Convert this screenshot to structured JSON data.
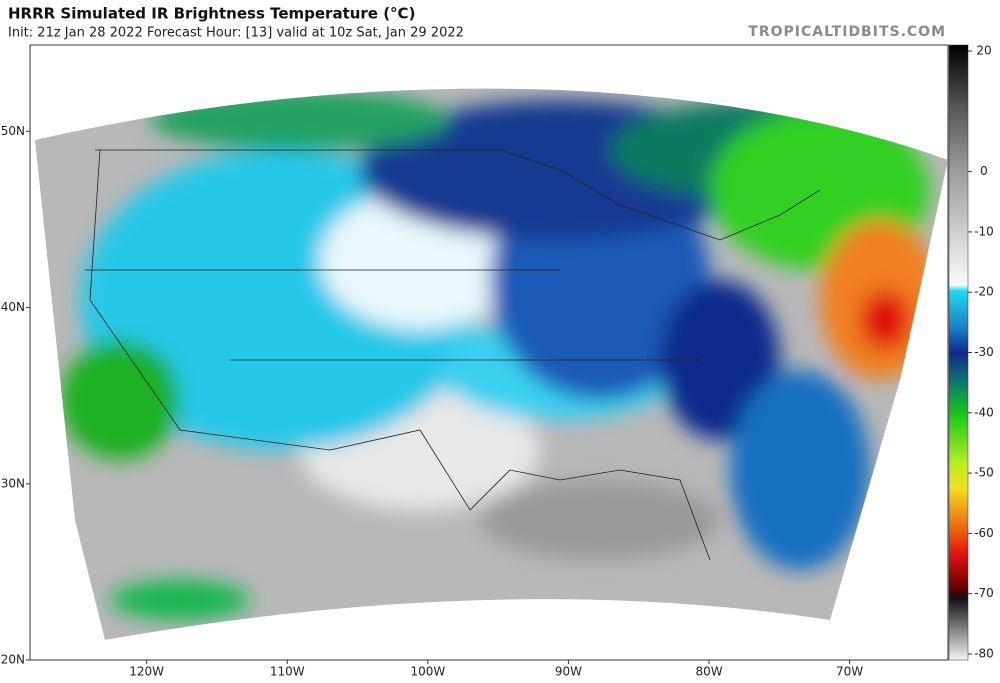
{
  "header": {
    "title": "HRRR Simulated IR Brightness Temperature (°C)",
    "subtitle": "Init: 21z Jan 28 2022   Forecast Hour: [13]   valid at 10z Sat, Jan 29 2022",
    "source": "TROPICALTIDBITS.COM"
  },
  "map": {
    "latlim": [
      20,
      54.9
    ],
    "lonlim": [
      -128.3,
      -63
    ],
    "lat_ticks": [
      {
        "value": 50,
        "label": "50N"
      },
      {
        "value": 40,
        "label": "40N"
      },
      {
        "value": 30,
        "label": "30N"
      },
      {
        "value": 20,
        "label": "20N"
      }
    ],
    "lon_ticks": [
      {
        "value": -120,
        "label": "120W"
      },
      {
        "value": -110,
        "label": "110W"
      },
      {
        "value": -100,
        "label": "100W"
      },
      {
        "value": -90,
        "label": "90W"
      },
      {
        "value": -80,
        "label": "80W"
      },
      {
        "value": -70,
        "label": "70W"
      }
    ]
  },
  "colorbar": {
    "lim": [
      21,
      -81
    ],
    "ticks": [
      20,
      0,
      -10,
      -20,
      -30,
      -40,
      -50,
      -60,
      -70,
      -80
    ]
  }
}
